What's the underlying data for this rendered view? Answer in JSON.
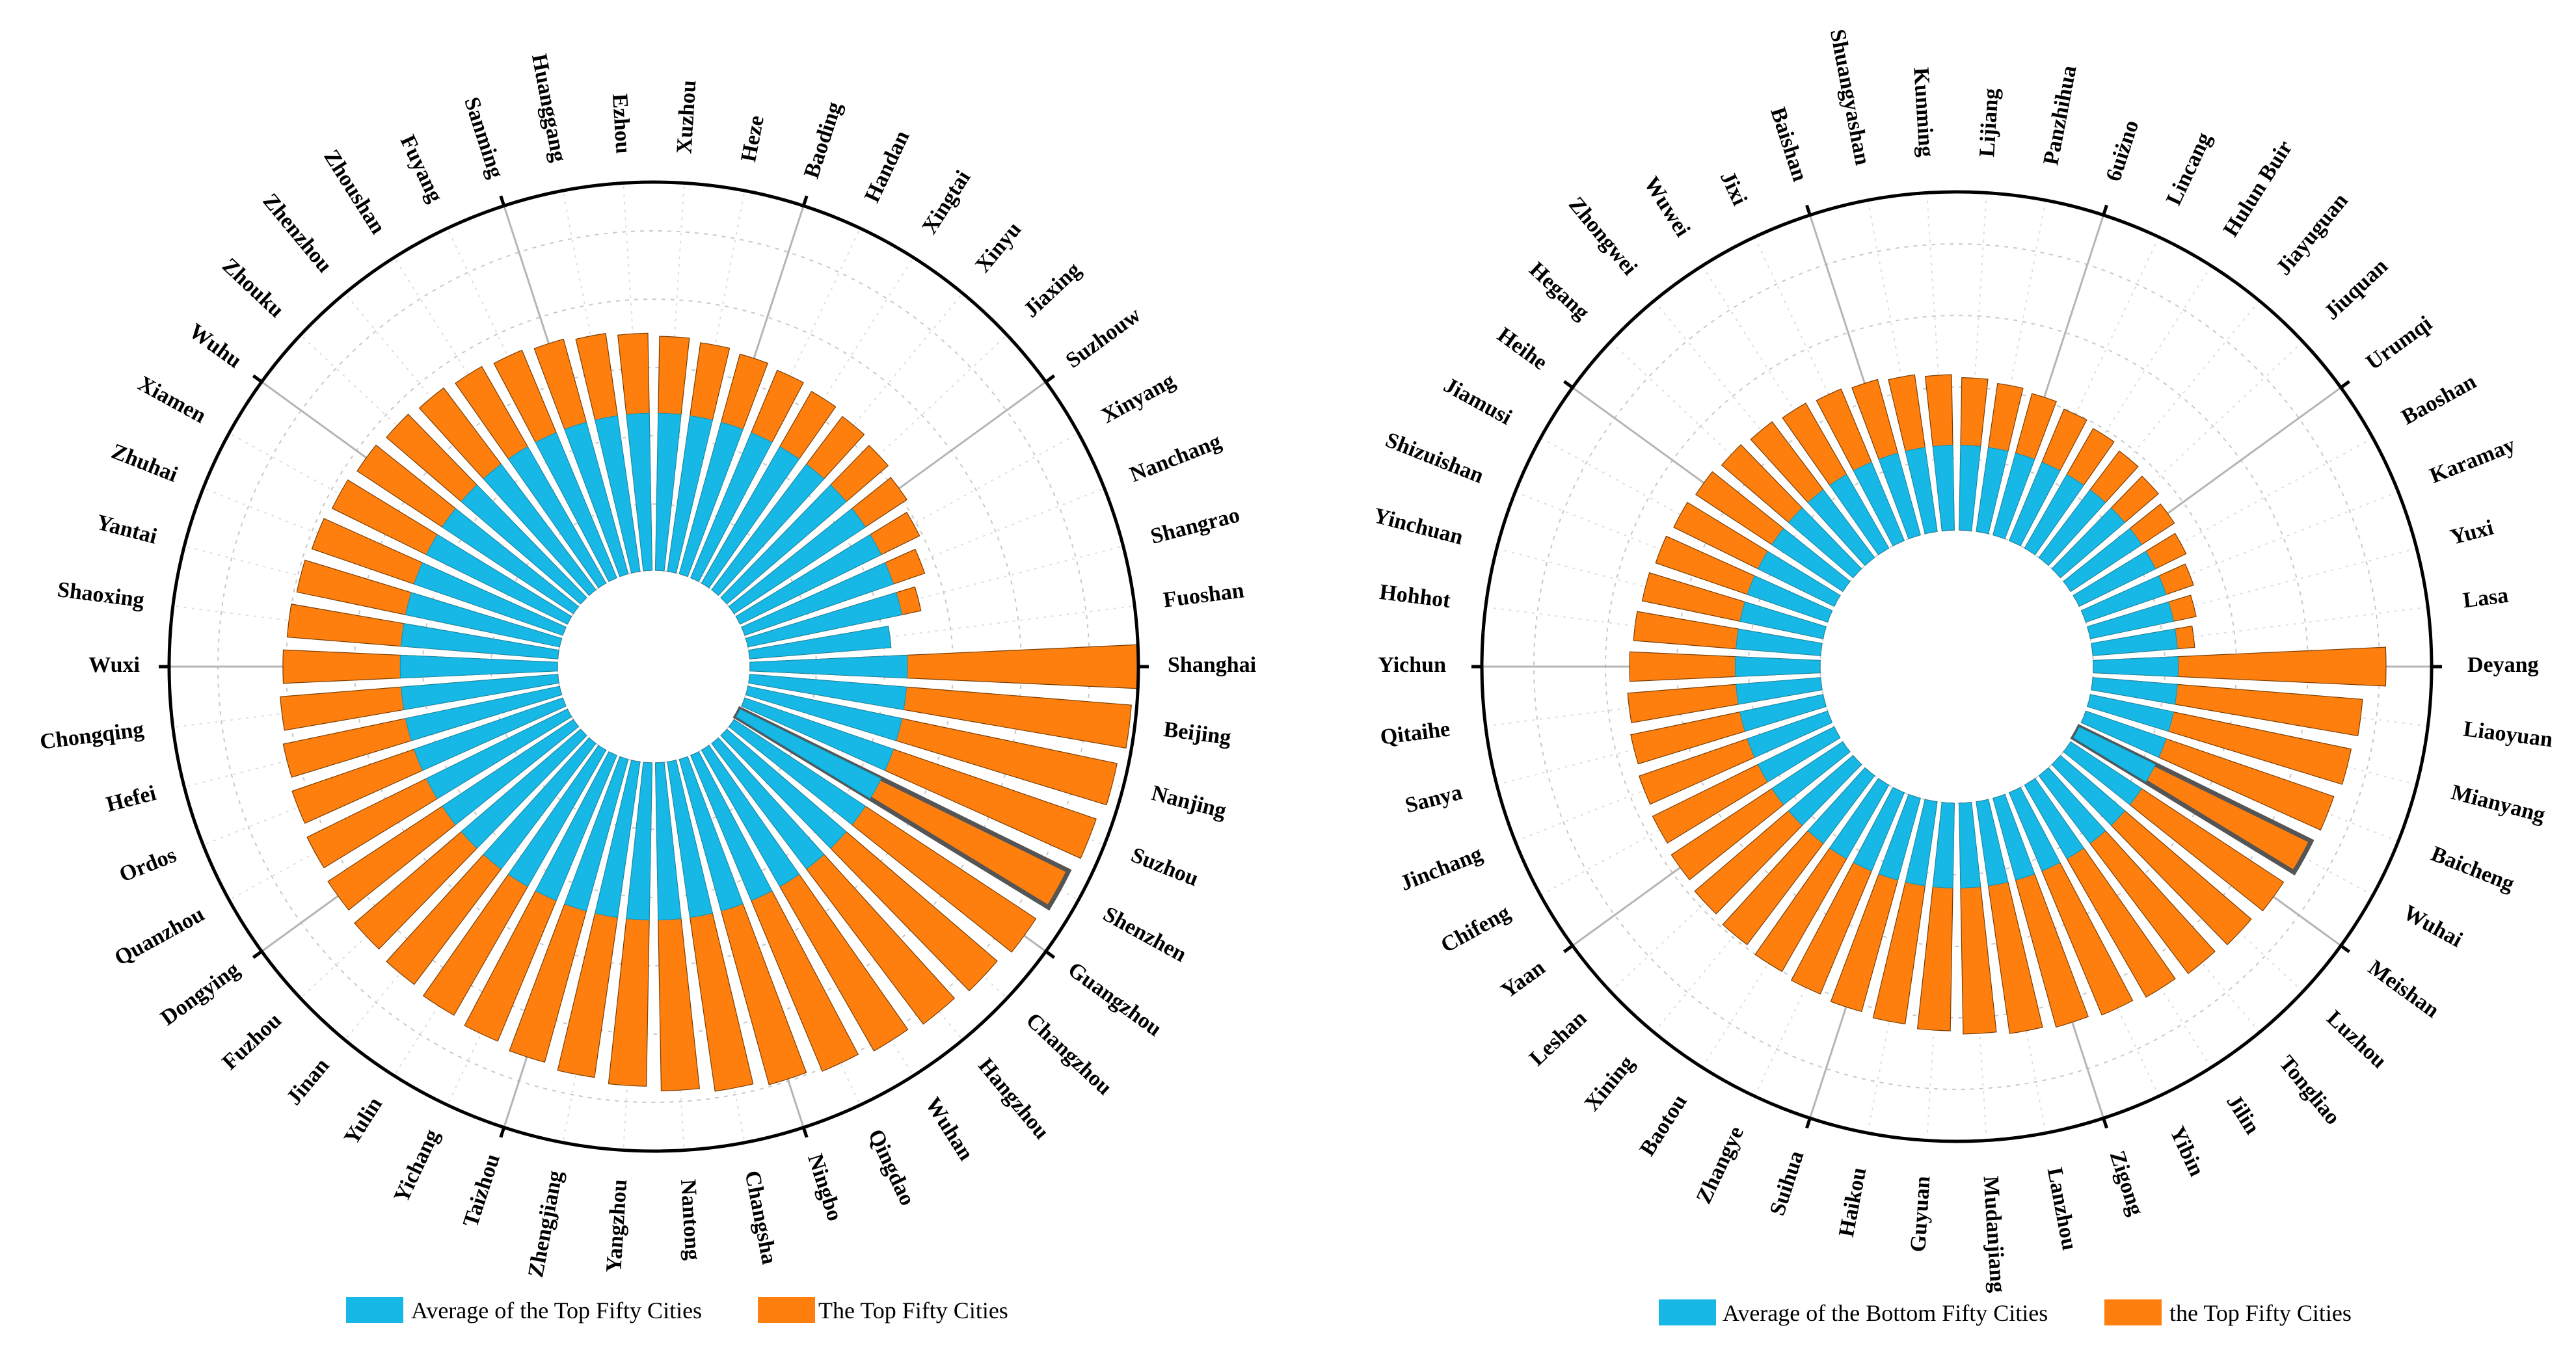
{
  "colors": {
    "average": "#17b8e6",
    "cities": "#ff7f0e",
    "bar_stroke": "#7a3d00",
    "frame": "#000000",
    "grid": "#c8c8c8"
  },
  "chart_data": [
    {
      "type": "bar",
      "subtype": "radial-bar",
      "title": "",
      "highlight": "Shenzhen",
      "categories": [
        "Shanghai",
        "Beijing",
        "Nanjing",
        "Suzhou",
        "Shenzhen",
        "Guangzhou",
        "Changzhou",
        "Hangzhou",
        "Wuhan",
        "Qingdao",
        "Ningbo",
        "Changsha",
        "Nantong",
        "Yangzhou",
        "Zhengjiang",
        "Taizhou",
        "Yichang",
        "Yulin",
        "Jinan",
        "Fuzhou",
        "Dongying",
        "Quanzhou",
        "Ordos",
        "Hefei",
        "Chongqing",
        "Wuxi",
        "Shaoxing",
        "Yantai",
        "Zhuhai",
        "Xiamen",
        "Wuhu",
        "Zhouku",
        "Zhenzhou",
        "Zhoushan",
        "Fuyang",
        "Sanming",
        "Huanggang",
        "Ezhou",
        "Xuzhou",
        "Heze",
        "Baoding",
        "Handan",
        "Xingtai",
        "Xinyu",
        "Jiaxing",
        "Suzhouw",
        "Xinyang",
        "Nanchang",
        "Shangrao",
        "Fuoshan"
      ],
      "series": [
        {
          "name": "Average of the Top Fifty Cities",
          "values": [
            0.405,
            0.405,
            0.405,
            0.405,
            0.405,
            0.405,
            0.405,
            0.405,
            0.405,
            0.405,
            0.405,
            0.405,
            0.405,
            0.405,
            0.405,
            0.405,
            0.405,
            0.405,
            0.405,
            0.405,
            0.405,
            0.405,
            0.405,
            0.405,
            0.405,
            0.405,
            0.405,
            0.405,
            0.405,
            0.405,
            0.405,
            0.405,
            0.405,
            0.405,
            0.405,
            0.405,
            0.405,
            0.405,
            0.405,
            0.405,
            0.405,
            0.405,
            0.405,
            0.405,
            0.405,
            0.405,
            0.405,
            0.405,
            0.405,
            0.405
          ]
        },
        {
          "name": "The Top Fifty Cities",
          "values": [
            1.0,
            0.986,
            0.971,
            0.957,
            0.943,
            0.931,
            0.917,
            0.905,
            0.893,
            0.881,
            0.869,
            0.857,
            0.845,
            0.833,
            0.821,
            0.809,
            0.797,
            0.787,
            0.777,
            0.767,
            0.757,
            0.747,
            0.737,
            0.727,
            0.717,
            0.707,
            0.699,
            0.691,
            0.683,
            0.675,
            0.667,
            0.659,
            0.651,
            0.643,
            0.635,
            0.627,
            0.619,
            0.611,
            0.603,
            0.595,
            0.587,
            0.579,
            0.569,
            0.559,
            0.547,
            0.533,
            0.515,
            0.49,
            0.455,
            0.365
          ]
        }
      ],
      "legend": [
        "Average of the Top Fifty Cities",
        "The Top Fifty Cities"
      ],
      "legend_position": "bottom",
      "grid": true
    },
    {
      "type": "bar",
      "subtype": "radial-bar",
      "title": "",
      "highlight": "Wuhai",
      "categories": [
        "Deyang",
        "Liaoyuan",
        "Mianyang",
        "Baicheng",
        "Wuhai",
        "Meishan",
        "Luzhou",
        "Tongliao",
        "Jilin",
        "Yibin",
        "Zigong",
        "Lanzhou",
        "Mudanjiang",
        "Guyuan",
        "Haikou",
        "Suihua",
        "Zhangye",
        "Baotou",
        "Xining",
        "Leshan",
        "Yaan",
        "Chifeng",
        "Jinchang",
        "Sanya",
        "Qitaihe",
        "Yichun",
        "Hohhot",
        "Yinchuan",
        "Shizuishan",
        "Jiamusi",
        "Heihe",
        "Hegang",
        "Zhongwei",
        "Wuwei",
        "Jixi",
        "Baishan",
        "Shuangyashan",
        "Kunming",
        "Lijiang",
        "Panzhihua",
        "6uiżno",
        "Lincang",
        "Hulun Buir",
        "Jiayuguan",
        "Jiuquan",
        "Urumqi",
        "Baoshan",
        "Karamay",
        "Yuxi",
        "Lasa"
      ],
      "series": [
        {
          "name": "Average of the Bottom Fifty Cities",
          "values": [
            0.29,
            0.29,
            0.29,
            0.29,
            0.29,
            0.29,
            0.29,
            0.29,
            0.29,
            0.29,
            0.29,
            0.29,
            0.29,
            0.29,
            0.29,
            0.29,
            0.29,
            0.29,
            0.29,
            0.29,
            0.29,
            0.29,
            0.29,
            0.29,
            0.29,
            0.29,
            0.29,
            0.29,
            0.29,
            0.29,
            0.29,
            0.29,
            0.29,
            0.29,
            0.29,
            0.29,
            0.29,
            0.29,
            0.29,
            0.29,
            0.29,
            0.29,
            0.29,
            0.29,
            0.29,
            0.29,
            0.29,
            0.29,
            0.29,
            0.29
          ]
        },
        {
          "name": "the Top Fifty Cities",
          "values": [
            1.0,
            0.924,
            0.91,
            0.896,
            0.883,
            0.871,
            0.859,
            0.847,
            0.835,
            0.823,
            0.811,
            0.8,
            0.789,
            0.778,
            0.767,
            0.756,
            0.745,
            0.734,
            0.723,
            0.712,
            0.701,
            0.691,
            0.681,
            0.671,
            0.661,
            0.651,
            0.641,
            0.631,
            0.621,
            0.611,
            0.601,
            0.591,
            0.581,
            0.571,
            0.561,
            0.551,
            0.541,
            0.531,
            0.521,
            0.511,
            0.501,
            0.486,
            0.471,
            0.456,
            0.441,
            0.424,
            0.407,
            0.389,
            0.369,
            0.349
          ]
        }
      ],
      "legend": [
        "Average of the Bottom Fifty Cities",
        "the Top Fifty Cities"
      ],
      "legend_position": "bottom",
      "grid": true
    }
  ]
}
